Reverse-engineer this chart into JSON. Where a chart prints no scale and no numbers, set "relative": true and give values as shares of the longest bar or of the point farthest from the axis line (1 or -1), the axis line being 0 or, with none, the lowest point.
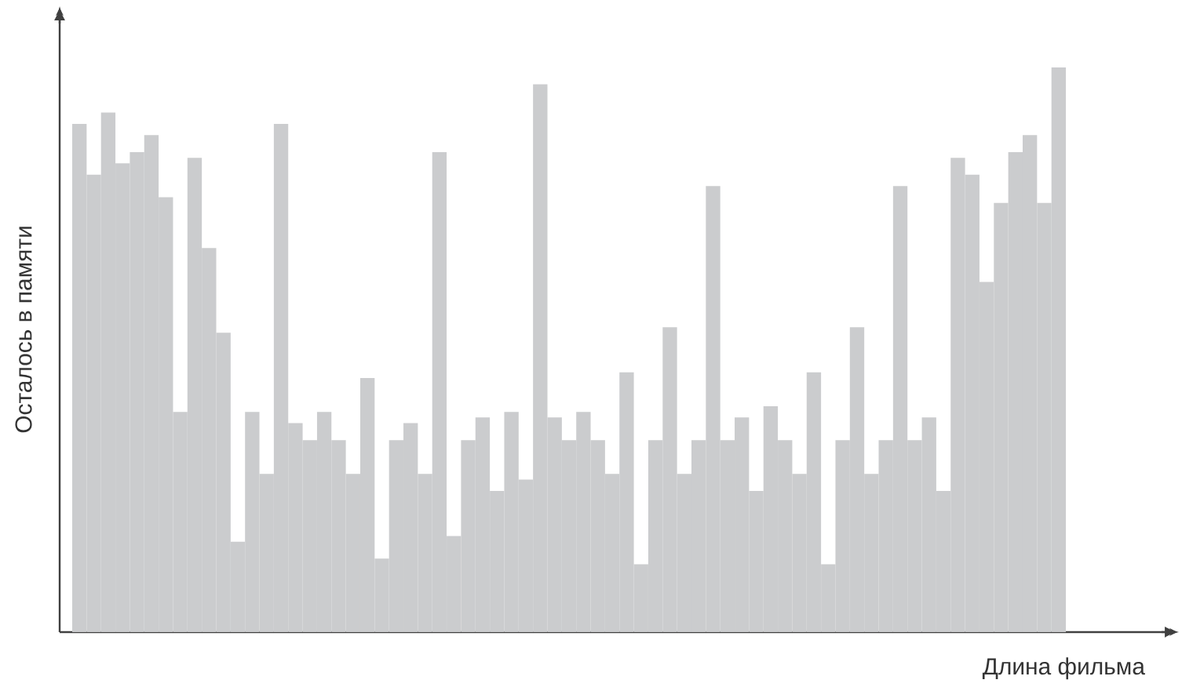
{
  "chart_data": {
    "type": "bar",
    "relative": true,
    "xlabel": "Длина фильма",
    "ylabel": "Осталось в памяти",
    "color": "#cbccce",
    "categories": [
      null,
      null,
      null,
      null,
      null,
      null,
      null,
      null,
      null,
      null,
      null,
      null,
      null,
      null,
      null,
      null,
      null,
      null,
      null,
      null,
      null,
      null,
      null,
      null,
      null,
      null,
      null,
      null,
      null,
      null,
      null,
      null,
      null,
      null,
      null,
      null,
      null,
      null,
      null,
      null,
      null,
      null,
      null,
      null,
      null,
      null,
      null,
      null,
      null,
      null,
      null,
      null,
      null,
      null,
      null,
      null,
      null,
      null,
      null,
      null,
      null,
      null,
      null,
      null,
      null,
      null,
      null,
      null,
      null
    ],
    "values": [
      0.9,
      0.81,
      0.92,
      0.83,
      0.85,
      0.88,
      0.77,
      0.39,
      0.84,
      0.68,
      0.53,
      0.16,
      0.39,
      0.28,
      0.9,
      0.37,
      0.34,
      0.39,
      0.34,
      0.28,
      0.45,
      0.13,
      0.34,
      0.37,
      0.28,
      0.85,
      0.17,
      0.34,
      0.38,
      0.25,
      0.39,
      0.27,
      0.97,
      0.38,
      0.34,
      0.39,
      0.34,
      0.28,
      0.46,
      0.12,
      0.34,
      0.54,
      0.28,
      0.34,
      0.79,
      0.34,
      0.38,
      0.25,
      0.4,
      0.34,
      0.28,
      0.46,
      0.12,
      0.34,
      0.54,
      0.28,
      0.34,
      0.79,
      0.34,
      0.38,
      0.25,
      0.84,
      0.81,
      0.62,
      0.76,
      0.85,
      0.88,
      0.76,
      1.0
    ]
  }
}
